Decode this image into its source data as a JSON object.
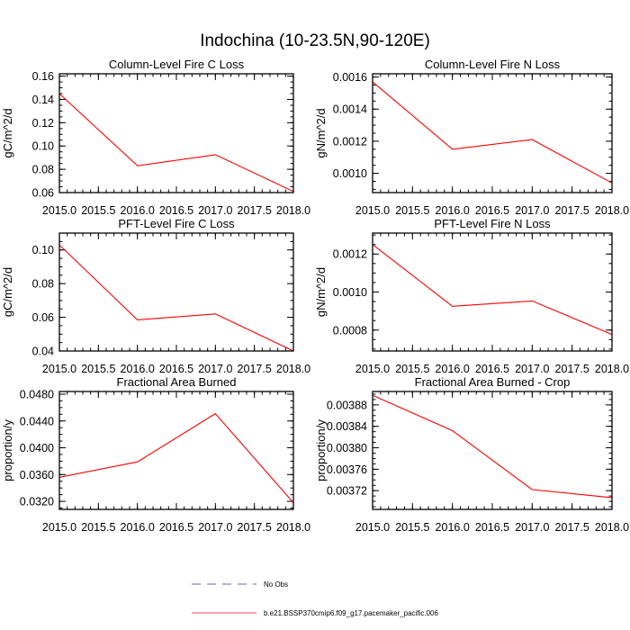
{
  "title": "Indochina (10-23.5N,90-120E)",
  "legend": [
    {
      "label": "No Obs",
      "color": "#3030a0",
      "style": "dashed"
    },
    {
      "label": "b.e21.BSSP370cmip6.f09_g17.pacemaker_pacific.006",
      "color": "#ff0000",
      "style": "solid"
    }
  ],
  "chart_data": [
    {
      "type": "line",
      "title": "Column-Level Fire C Loss",
      "ylabel": "gC/m^2/d",
      "x": [
        2015,
        2016,
        2017,
        2018
      ],
      "xlim": [
        2015.0,
        2018.0
      ],
      "xticks": [
        "2015.0",
        "2015.5",
        "2016.0",
        "2016.5",
        "2017.0",
        "2017.5",
        "2018.0"
      ],
      "ylim": [
        0.06,
        0.162
      ],
      "yticks": [
        {
          "v": 0.06,
          "t": "0.06"
        },
        {
          "v": 0.08,
          "t": "0.08"
        },
        {
          "v": 0.1,
          "t": "0.10"
        },
        {
          "v": 0.12,
          "t": "0.12"
        },
        {
          "v": 0.14,
          "t": "0.14"
        },
        {
          "v": 0.16,
          "t": "0.16"
        }
      ],
      "series": [
        {
          "name": "b.e21.BSSP370cmip6.f09_g17.pacemaker_pacific.006",
          "color": "#ff0000",
          "values": [
            0.145,
            0.083,
            0.0925,
            0.061
          ]
        }
      ]
    },
    {
      "type": "line",
      "title": "Column-Level Fire N Loss",
      "ylabel": "gN/m^2/d",
      "x": [
        2015,
        2016,
        2017,
        2018
      ],
      "xlim": [
        2015.0,
        2018.0
      ],
      "xticks": [
        "2015.0",
        "2015.5",
        "2016.0",
        "2016.5",
        "2017.0",
        "2017.5",
        "2018.0"
      ],
      "ylim": [
        0.00088,
        0.00162
      ],
      "yticks": [
        {
          "v": 0.001,
          "t": "0.0010"
        },
        {
          "v": 0.0012,
          "t": "0.0012"
        },
        {
          "v": 0.0014,
          "t": "0.0014"
        },
        {
          "v": 0.0016,
          "t": "0.0016"
        }
      ],
      "series": [
        {
          "name": "b.e21.BSSP370cmip6.f09_g17.pacemaker_pacific.006",
          "color": "#ff0000",
          "values": [
            0.00157,
            0.00115,
            0.00121,
            0.00094
          ]
        }
      ]
    },
    {
      "type": "line",
      "title": "PFT-Level Fire C Loss",
      "ylabel": "gC/m^2/d",
      "x": [
        2015,
        2016,
        2017,
        2018
      ],
      "xlim": [
        2015.0,
        2018.0
      ],
      "xticks": [
        "2015.0",
        "2015.5",
        "2016.0",
        "2016.5",
        "2017.0",
        "2017.5",
        "2018.0"
      ],
      "ylim": [
        0.04,
        0.11
      ],
      "yticks": [
        {
          "v": 0.04,
          "t": "0.04"
        },
        {
          "v": 0.06,
          "t": "0.06"
        },
        {
          "v": 0.08,
          "t": "0.08"
        },
        {
          "v": 0.1,
          "t": "0.10"
        }
      ],
      "series": [
        {
          "name": "b.e21.BSSP370cmip6.f09_g17.pacemaker_pacific.006",
          "color": "#ff0000",
          "values": [
            0.103,
            0.0585,
            0.062,
            0.04
          ]
        }
      ]
    },
    {
      "type": "line",
      "title": "PFT-Level Fire N Loss",
      "ylabel": "gN/m^2/d",
      "x": [
        2015,
        2016,
        2017,
        2018
      ],
      "xlim": [
        2015.0,
        2018.0
      ],
      "xticks": [
        "2015.0",
        "2015.5",
        "2016.0",
        "2016.5",
        "2017.0",
        "2017.5",
        "2018.0"
      ],
      "ylim": [
        0.00069,
        0.00131
      ],
      "yticks": [
        {
          "v": 0.0008,
          "t": "0.0008"
        },
        {
          "v": 0.001,
          "t": "0.0010"
        },
        {
          "v": 0.0012,
          "t": "0.0012"
        }
      ],
      "series": [
        {
          "name": "b.e21.BSSP370cmip6.f09_g17.pacemaker_pacific.006",
          "color": "#ff0000",
          "values": [
            0.00125,
            0.000925,
            0.000953,
            0.000777
          ]
        }
      ]
    },
    {
      "type": "line",
      "title": "Fractional Area Burned",
      "ylabel": "proportion/y",
      "x": [
        2015,
        2016,
        2017,
        2018
      ],
      "xlim": [
        2015.0,
        2018.0
      ],
      "xticks": [
        "2015.0",
        "2015.5",
        "2016.0",
        "2016.5",
        "2017.0",
        "2017.5",
        "2018.0"
      ],
      "ylim": [
        0.0308,
        0.0484
      ],
      "yticks": [
        {
          "v": 0.032,
          "t": "0.0320"
        },
        {
          "v": 0.036,
          "t": "0.0360"
        },
        {
          "v": 0.04,
          "t": "0.0400"
        },
        {
          "v": 0.044,
          "t": "0.0440"
        },
        {
          "v": 0.048,
          "t": "0.0480"
        }
      ],
      "series": [
        {
          "name": "b.e21.BSSP370cmip6.f09_g17.pacemaker_pacific.006",
          "color": "#ff0000",
          "values": [
            0.0356,
            0.0379,
            0.0451,
            0.0318
          ]
        }
      ]
    },
    {
      "type": "line",
      "title": "Fractional Area Burned - Crop",
      "ylabel": "proportion/y",
      "x": [
        2015,
        2016,
        2017,
        2018
      ],
      "xlim": [
        2015.0,
        2018.0
      ],
      "xticks": [
        "2015.0",
        "2015.5",
        "2016.0",
        "2016.5",
        "2017.0",
        "2017.5",
        "2018.0"
      ],
      "ylim": [
        0.003685,
        0.003905
      ],
      "yticks": [
        {
          "v": 0.00372,
          "t": "0.00372"
        },
        {
          "v": 0.00376,
          "t": "0.00376"
        },
        {
          "v": 0.0038,
          "t": "0.00380"
        },
        {
          "v": 0.00384,
          "t": "0.00384"
        },
        {
          "v": 0.00388,
          "t": "0.00388"
        }
      ],
      "series": [
        {
          "name": "b.e21.BSSP370cmip6.f09_g17.pacemaker_pacific.006",
          "color": "#ff0000",
          "values": [
            0.003898,
            0.003832,
            0.003722,
            0.003707
          ]
        }
      ]
    }
  ]
}
